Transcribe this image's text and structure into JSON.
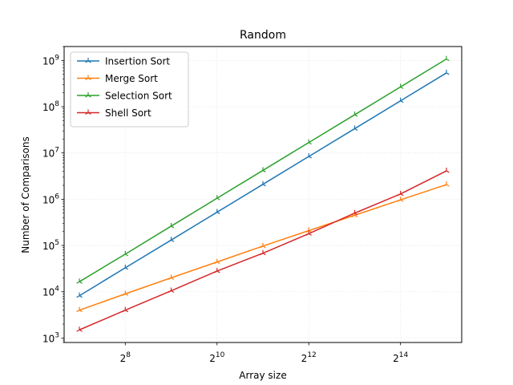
{
  "chart_data": {
    "type": "line",
    "title": "Random",
    "xlabel": "Array size",
    "ylabel": "Number of Comparisons",
    "xscale": "log2",
    "yscale": "log10",
    "x": [
      128,
      256,
      512,
      1024,
      2048,
      4096,
      8192,
      16384,
      32768
    ],
    "xlim": [
      101.6,
      41285
    ],
    "ylim": [
      800,
      2000000000
    ],
    "x_ticks": [
      {
        "value": 256,
        "base": "2",
        "exp": "8"
      },
      {
        "value": 1024,
        "base": "2",
        "exp": "10"
      },
      {
        "value": 4096,
        "base": "2",
        "exp": "12"
      },
      {
        "value": 16384,
        "base": "2",
        "exp": "14"
      }
    ],
    "y_ticks": [
      {
        "value": 1000,
        "base": "10",
        "exp": "3"
      },
      {
        "value": 10000,
        "base": "10",
        "exp": "4"
      },
      {
        "value": 100000,
        "base": "10",
        "exp": "5"
      },
      {
        "value": 1000000,
        "base": "10",
        "exp": "6"
      },
      {
        "value": 10000000,
        "base": "10",
        "exp": "7"
      },
      {
        "value": 100000000,
        "base": "10",
        "exp": "8"
      },
      {
        "value": 1000000000,
        "base": "10",
        "exp": "9"
      }
    ],
    "grid": true,
    "legend_position": "top-left",
    "marker": "tri-star",
    "series": [
      {
        "name": "Insertion Sort",
        "color": "#1f77b4",
        "values": [
          8200,
          33000,
          131000,
          524000,
          2100000,
          8400000,
          33500000,
          134000000,
          537000000
        ]
      },
      {
        "name": "Merge Sort",
        "color": "#ff7f0e",
        "values": [
          4000,
          9000,
          20000,
          44000,
          97000,
          210000,
          450000,
          970000,
          2070000
        ]
      },
      {
        "name": "Selection Sort",
        "color": "#2ca02c",
        "values": [
          16500,
          65000,
          262000,
          1050000,
          4200000,
          16800000,
          67000000,
          268000000,
          1070000000
        ]
      },
      {
        "name": "Shell Sort",
        "color": "#d62728",
        "values": [
          1500,
          4000,
          10500,
          28000,
          68000,
          180000,
          500000,
          1300000,
          4100000
        ]
      }
    ]
  }
}
